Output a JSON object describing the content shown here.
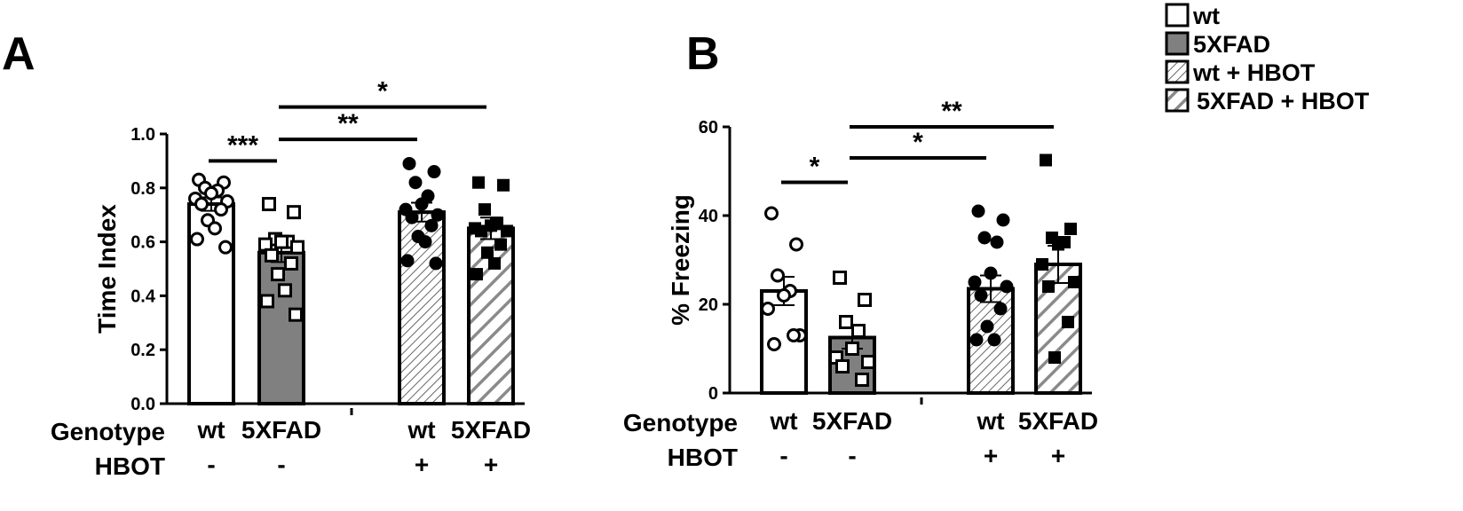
{
  "chart_data": [
    {
      "type": "bar",
      "panel": "A",
      "ylabel": "Time Index",
      "ylim": [
        0,
        1.0
      ],
      "yticks": [
        "0.0",
        "0.2",
        "0.4",
        "0.6",
        "0.8",
        "1.0"
      ],
      "row_labels": {
        "genotype": "Genotype",
        "hbot": "HBOT"
      },
      "groups": [
        {
          "genotype": "wt",
          "hbot": "-",
          "mean": 0.74,
          "sem": 0.025,
          "points": [
            0.83,
            0.82,
            0.8,
            0.79,
            0.78,
            0.76,
            0.75,
            0.74,
            0.72,
            0.68,
            0.65,
            0.61,
            0.58
          ]
        },
        {
          "genotype": "5XFAD",
          "hbot": "-",
          "mean": 0.56,
          "sem": 0.035,
          "points": [
            0.74,
            0.71,
            0.61,
            0.6,
            0.6,
            0.59,
            0.58,
            0.55,
            0.52,
            0.48,
            0.42,
            0.38,
            0.33
          ]
        },
        {
          "genotype": "wt",
          "hbot": "+",
          "mean": 0.71,
          "sem": 0.035,
          "points": [
            0.89,
            0.86,
            0.82,
            0.77,
            0.74,
            0.72,
            0.7,
            0.69,
            0.66,
            0.62,
            0.6,
            0.53,
            0.52
          ]
        },
        {
          "genotype": "5XFAD",
          "hbot": "+",
          "mean": 0.65,
          "sem": 0.04,
          "points": [
            0.82,
            0.81,
            0.72,
            0.67,
            0.66,
            0.65,
            0.64,
            0.64,
            0.59,
            0.56,
            0.52,
            0.48
          ]
        }
      ],
      "significance": [
        {
          "from": 0,
          "to": 1,
          "label": "***",
          "y": 0.9
        },
        {
          "from": 1,
          "to": 2,
          "label": "**",
          "y": 0.98
        },
        {
          "from": 1,
          "to": 3,
          "label": "*",
          "y": 1.1
        }
      ]
    },
    {
      "type": "bar",
      "panel": "B",
      "ylabel": "% Freezing",
      "ylim": [
        0,
        60
      ],
      "yticks": [
        "0",
        "20",
        "40",
        "60"
      ],
      "row_labels": {
        "genotype": "Genotype",
        "hbot": "HBOT"
      },
      "groups": [
        {
          "genotype": "wt",
          "hbot": "-",
          "mean": 23,
          "sem": 3.2,
          "points": [
            40.5,
            33.5,
            26.5,
            23,
            22,
            19,
            13,
            11,
            13
          ]
        },
        {
          "genotype": "5XFAD",
          "hbot": "-",
          "mean": 12.5,
          "sem": 2.5,
          "points": [
            26,
            21,
            16,
            14,
            10,
            8,
            7,
            6,
            3
          ]
        },
        {
          "genotype": "wt",
          "hbot": "+",
          "mean": 23.5,
          "sem": 3.0,
          "points": [
            41,
            39,
            35,
            34,
            27,
            25,
            24,
            22,
            19,
            15,
            12,
            12
          ]
        },
        {
          "genotype": "5XFAD",
          "hbot": "+",
          "mean": 29,
          "sem": 4.2,
          "points": [
            52.5,
            37,
            35,
            34,
            33.5,
            29,
            25,
            24,
            16,
            8
          ]
        }
      ],
      "significance": [
        {
          "from": 0,
          "to": 1,
          "label": "*",
          "y": 47.5
        },
        {
          "from": 1,
          "to": 2,
          "label": "*",
          "y": 53
        },
        {
          "from": 1,
          "to": 3,
          "label": "**",
          "y": 60
        }
      ]
    }
  ],
  "legend": [
    {
      "label": "wt",
      "style": "white"
    },
    {
      "label": "5XFAD",
      "style": "gray"
    },
    {
      "label": "wt + HBOT",
      "style": "fine-hatch"
    },
    {
      "label": "5XFAD + HBOT",
      "style": "coarse-hatch"
    }
  ],
  "colors": {
    "gray_fill": "#808080",
    "stroke": "#000000",
    "hatch_fine": "#666666",
    "hatch_coarse": "#8a8a8a"
  }
}
